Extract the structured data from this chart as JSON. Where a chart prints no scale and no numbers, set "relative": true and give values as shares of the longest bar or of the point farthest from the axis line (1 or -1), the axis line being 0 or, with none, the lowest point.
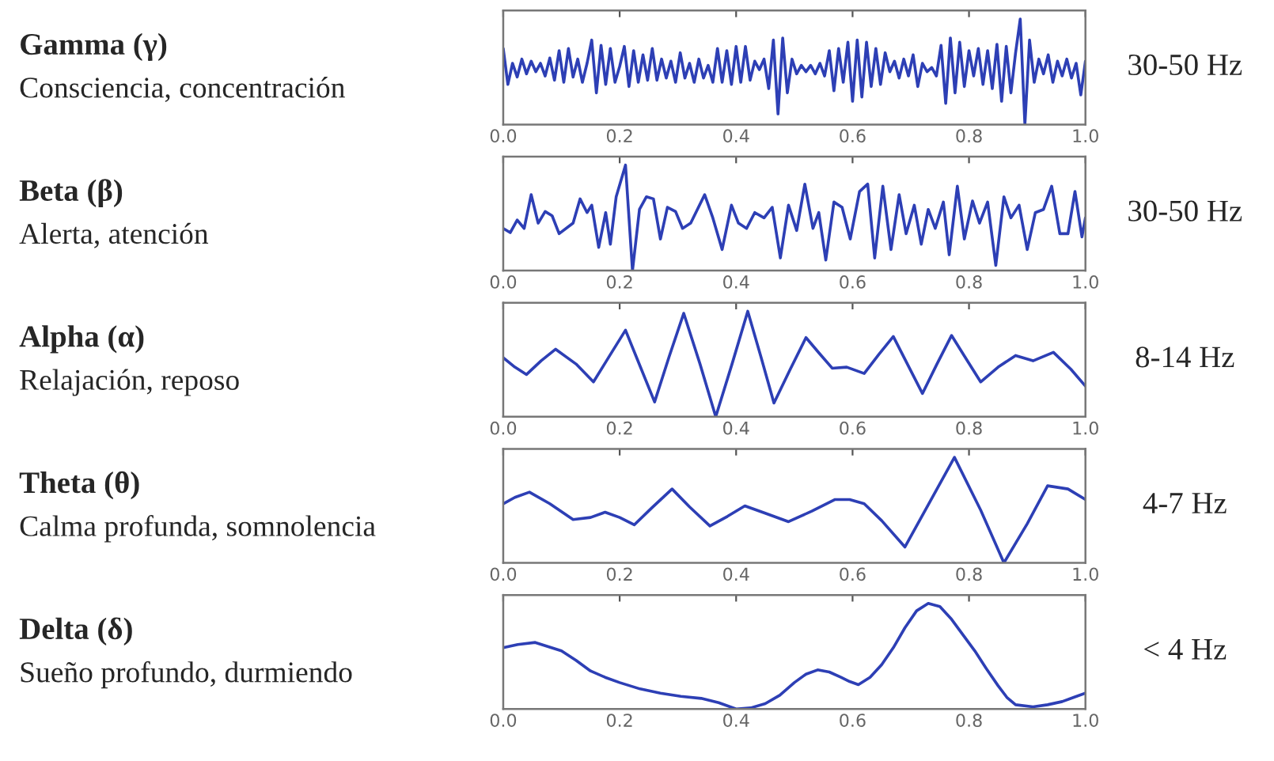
{
  "chart_data": [
    {
      "type": "line",
      "annotations": [
        "Gamma (γ)",
        "Consciencia, concentración",
        "30-50 Hz"
      ],
      "relative": true,
      "xlim": [
        0,
        1
      ],
      "xticks": [
        {
          "value": 0,
          "label": "0.0"
        },
        {
          "value": 0.2,
          "label": "0.2"
        },
        {
          "value": 0.4,
          "label": "0.4"
        },
        {
          "value": 0.6,
          "label": "0.6"
        },
        {
          "value": 0.8,
          "label": "0.8"
        },
        {
          "value": 1,
          "label": "1.0"
        }
      ],
      "tick_labels": "x",
      "grid": false,
      "series": [
        {
          "color": "#2d3fb5",
          "x": [
            0.0,
            0.008,
            0.016,
            0.024,
            0.032,
            0.04,
            0.048,
            0.056,
            0.064,
            0.072,
            0.08,
            0.088,
            0.096,
            0.104,
            0.112,
            0.12,
            0.128,
            0.136,
            0.144,
            0.152,
            0.16,
            0.168,
            0.176,
            0.184,
            0.192,
            0.2,
            0.208,
            0.216,
            0.224,
            0.232,
            0.24,
            0.248,
            0.256,
            0.264,
            0.272,
            0.28,
            0.288,
            0.296,
            0.304,
            0.312,
            0.32,
            0.328,
            0.336,
            0.344,
            0.352,
            0.36,
            0.368,
            0.376,
            0.384,
            0.392,
            0.4,
            0.408,
            0.416,
            0.424,
            0.432,
            0.44,
            0.448,
            0.456,
            0.464,
            0.472,
            0.48,
            0.488,
            0.496,
            0.504,
            0.512,
            0.52,
            0.528,
            0.536,
            0.544,
            0.552,
            0.56,
            0.568,
            0.576,
            0.584,
            0.592,
            0.6,
            0.608,
            0.616,
            0.624,
            0.632,
            0.64,
            0.648,
            0.656,
            0.664,
            0.672,
            0.68,
            0.688,
            0.696,
            0.704,
            0.712,
            0.72,
            0.728,
            0.736,
            0.744,
            0.752,
            0.76,
            0.768,
            0.776,
            0.784,
            0.792,
            0.8,
            0.808,
            0.816,
            0.824,
            0.832,
            0.84,
            0.848,
            0.856,
            0.864,
            0.872,
            0.88,
            0.888,
            0.896,
            0.904,
            0.912,
            0.92,
            0.928,
            0.936,
            0.944,
            0.952,
            0.96,
            0.968,
            0.976,
            0.984,
            0.992,
            1.0
          ],
          "values": [
            0.72,
            0.38,
            0.58,
            0.45,
            0.62,
            0.48,
            0.6,
            0.5,
            0.58,
            0.46,
            0.63,
            0.42,
            0.7,
            0.4,
            0.72,
            0.45,
            0.62,
            0.4,
            0.58,
            0.8,
            0.3,
            0.75,
            0.38,
            0.72,
            0.4,
            0.55,
            0.74,
            0.36,
            0.7,
            0.4,
            0.66,
            0.42,
            0.72,
            0.42,
            0.62,
            0.44,
            0.6,
            0.4,
            0.68,
            0.44,
            0.58,
            0.4,
            0.62,
            0.44,
            0.56,
            0.4,
            0.72,
            0.4,
            0.7,
            0.38,
            0.74,
            0.4,
            0.74,
            0.42,
            0.6,
            0.52,
            0.62,
            0.34,
            0.8,
            0.1,
            0.82,
            0.3,
            0.62,
            0.48,
            0.56,
            0.5,
            0.56,
            0.48,
            0.58,
            0.46,
            0.7,
            0.32,
            0.72,
            0.4,
            0.78,
            0.22,
            0.8,
            0.26,
            0.78,
            0.36,
            0.72,
            0.38,
            0.68,
            0.5,
            0.6,
            0.44,
            0.62,
            0.46,
            0.66,
            0.36,
            0.58,
            0.5,
            0.54,
            0.46,
            0.75,
            0.2,
            0.82,
            0.3,
            0.78,
            0.36,
            0.7,
            0.46,
            0.72,
            0.38,
            0.7,
            0.34,
            0.76,
            0.22,
            0.74,
            0.3,
            0.68,
            1.0,
            0.0,
            0.8,
            0.4,
            0.62,
            0.48,
            0.66,
            0.4,
            0.6,
            0.46,
            0.62,
            0.44,
            0.58,
            0.28,
            0.6
          ]
        }
      ]
    },
    {
      "type": "line",
      "annotations": [
        "Beta (β)",
        "Alerta, atención",
        "30-50 Hz"
      ],
      "relative": true,
      "xlim": [
        0,
        1
      ],
      "xticks": [
        {
          "value": 0,
          "label": "0.0"
        },
        {
          "value": 0.2,
          "label": "0.2"
        },
        {
          "value": 0.4,
          "label": "0.4"
        },
        {
          "value": 0.6,
          "label": "0.6"
        },
        {
          "value": 0.8,
          "label": "0.8"
        },
        {
          "value": 1,
          "label": "1.0"
        }
      ],
      "tick_labels": "x",
      "grid": false,
      "series": [
        {
          "color": "#2d3fb5",
          "x": [
            0.0,
            0.012,
            0.024,
            0.036,
            0.048,
            0.06,
            0.072,
            0.084,
            0.096,
            0.12,
            0.132,
            0.144,
            0.152,
            0.164,
            0.176,
            0.184,
            0.194,
            0.21,
            0.222,
            0.234,
            0.246,
            0.258,
            0.27,
            0.282,
            0.296,
            0.308,
            0.322,
            0.346,
            0.36,
            0.376,
            0.392,
            0.404,
            0.418,
            0.432,
            0.448,
            0.462,
            0.476,
            0.49,
            0.504,
            0.518,
            0.532,
            0.542,
            0.554,
            0.568,
            0.582,
            0.596,
            0.612,
            0.626,
            0.638,
            0.652,
            0.666,
            0.68,
            0.692,
            0.706,
            0.718,
            0.73,
            0.742,
            0.756,
            0.766,
            0.78,
            0.792,
            0.806,
            0.818,
            0.832,
            0.846,
            0.86,
            0.872,
            0.886,
            0.9,
            0.914,
            0.928,
            0.942,
            0.956,
            0.97,
            0.982,
            0.994,
            1.0
          ],
          "values": [
            0.4,
            0.36,
            0.48,
            0.4,
            0.72,
            0.45,
            0.56,
            0.52,
            0.35,
            0.45,
            0.68,
            0.55,
            0.62,
            0.22,
            0.55,
            0.25,
            0.7,
            1.0,
            0.0,
            0.58,
            0.7,
            0.68,
            0.3,
            0.6,
            0.56,
            0.4,
            0.45,
            0.72,
            0.5,
            0.2,
            0.62,
            0.45,
            0.4,
            0.55,
            0.5,
            0.6,
            0.12,
            0.62,
            0.38,
            0.82,
            0.4,
            0.55,
            0.1,
            0.65,
            0.6,
            0.3,
            0.75,
            0.82,
            0.12,
            0.8,
            0.2,
            0.72,
            0.35,
            0.62,
            0.25,
            0.58,
            0.4,
            0.65,
            0.15,
            0.8,
            0.3,
            0.66,
            0.45,
            0.65,
            0.05,
            0.7,
            0.5,
            0.62,
            0.2,
            0.55,
            0.58,
            0.8,
            0.35,
            0.35,
            0.75,
            0.32,
            0.5
          ]
        }
      ]
    },
    {
      "type": "line",
      "annotations": [
        "Alpha (α)",
        "Relajación, reposo",
        "8-14 Hz"
      ],
      "relative": true,
      "xlim": [
        0,
        1
      ],
      "xticks": [
        {
          "value": 0,
          "label": "0.0"
        },
        {
          "value": 0.2,
          "label": "0.2"
        },
        {
          "value": 0.4,
          "label": "0.4"
        },
        {
          "value": 0.6,
          "label": "0.6"
        },
        {
          "value": 0.8,
          "label": "0.8"
        },
        {
          "value": 1,
          "label": "1.0"
        }
      ],
      "tick_labels": "x",
      "grid": false,
      "series": [
        {
          "color": "#2d3fb5",
          "x": [
            0.0,
            0.02,
            0.04,
            0.065,
            0.09,
            0.125,
            0.155,
            0.183,
            0.21,
            0.235,
            0.26,
            0.285,
            0.31,
            0.338,
            0.365,
            0.393,
            0.42,
            0.443,
            0.465,
            0.493,
            0.52,
            0.543,
            0.565,
            0.59,
            0.62,
            0.645,
            0.67,
            0.695,
            0.72,
            0.745,
            0.77,
            0.795,
            0.82,
            0.85,
            0.88,
            0.91,
            0.945,
            0.975,
            1.0
          ],
          "values": [
            0.56,
            0.47,
            0.4,
            0.53,
            0.64,
            0.5,
            0.33,
            0.58,
            0.82,
            0.48,
            0.14,
            0.57,
            0.98,
            0.5,
            0.0,
            0.5,
            1.0,
            0.56,
            0.13,
            0.45,
            0.75,
            0.6,
            0.46,
            0.47,
            0.41,
            0.59,
            0.76,
            0.49,
            0.22,
            0.5,
            0.77,
            0.55,
            0.33,
            0.47,
            0.58,
            0.53,
            0.61,
            0.45,
            0.29
          ]
        }
      ]
    },
    {
      "type": "line",
      "annotations": [
        "Theta (θ)",
        "Calma profunda, somnolencia",
        "4-7 Hz"
      ],
      "relative": true,
      "xlim": [
        0,
        1
      ],
      "xticks": [
        {
          "value": 0,
          "label": "0.0"
        },
        {
          "value": 0.2,
          "label": "0.2"
        },
        {
          "value": 0.4,
          "label": "0.4"
        },
        {
          "value": 0.6,
          "label": "0.6"
        },
        {
          "value": 0.8,
          "label": "0.8"
        },
        {
          "value": 1,
          "label": "1.0"
        }
      ],
      "tick_labels": "x",
      "grid": false,
      "series": [
        {
          "color": "#2d3fb5",
          "x": [
            0.0,
            0.02,
            0.045,
            0.08,
            0.12,
            0.15,
            0.175,
            0.2,
            0.225,
            0.255,
            0.29,
            0.32,
            0.355,
            0.385,
            0.415,
            0.45,
            0.49,
            0.53,
            0.57,
            0.595,
            0.62,
            0.65,
            0.69,
            0.73,
            0.775,
            0.82,
            0.86,
            0.9,
            0.935,
            0.97,
            1.0
          ],
          "values": [
            0.56,
            0.62,
            0.67,
            0.56,
            0.41,
            0.43,
            0.48,
            0.43,
            0.36,
            0.52,
            0.7,
            0.53,
            0.35,
            0.44,
            0.54,
            0.47,
            0.39,
            0.49,
            0.6,
            0.6,
            0.56,
            0.4,
            0.15,
            0.55,
            1.0,
            0.5,
            0.0,
            0.37,
            0.73,
            0.7,
            0.6
          ]
        }
      ]
    },
    {
      "type": "line",
      "annotations": [
        "Delta (δ)",
        "Sueño profundo, durmiendo",
        "< 4 Hz"
      ],
      "relative": true,
      "xlim": [
        0,
        1
      ],
      "xticks": [
        {
          "value": 0,
          "label": "0.0"
        },
        {
          "value": 0.2,
          "label": "0.2"
        },
        {
          "value": 0.4,
          "label": "0.4"
        },
        {
          "value": 0.6,
          "label": "0.6"
        },
        {
          "value": 0.8,
          "label": "0.8"
        },
        {
          "value": 1,
          "label": "1.0"
        }
      ],
      "tick_labels": "x",
      "grid": false,
      "series": [
        {
          "color": "#2d3fb5",
          "x": [
            0.0,
            0.025,
            0.055,
            0.1,
            0.125,
            0.15,
            0.175,
            0.2,
            0.235,
            0.27,
            0.305,
            0.34,
            0.37,
            0.4,
            0.425,
            0.45,
            0.475,
            0.5,
            0.52,
            0.54,
            0.56,
            0.58,
            0.595,
            0.61,
            0.63,
            0.65,
            0.67,
            0.69,
            0.71,
            0.73,
            0.75,
            0.77,
            0.79,
            0.81,
            0.83,
            0.85,
            0.865,
            0.88,
            0.91,
            0.935,
            0.96,
            0.98,
            1.0
          ],
          "values": [
            0.58,
            0.61,
            0.63,
            0.55,
            0.46,
            0.36,
            0.3,
            0.25,
            0.19,
            0.15,
            0.12,
            0.1,
            0.06,
            0.0,
            0.01,
            0.05,
            0.13,
            0.25,
            0.33,
            0.37,
            0.35,
            0.3,
            0.26,
            0.23,
            0.3,
            0.42,
            0.58,
            0.77,
            0.93,
            1.0,
            0.97,
            0.85,
            0.7,
            0.55,
            0.38,
            0.22,
            0.11,
            0.04,
            0.02,
            0.04,
            0.07,
            0.11,
            0.15
          ]
        }
      ]
    }
  ]
}
